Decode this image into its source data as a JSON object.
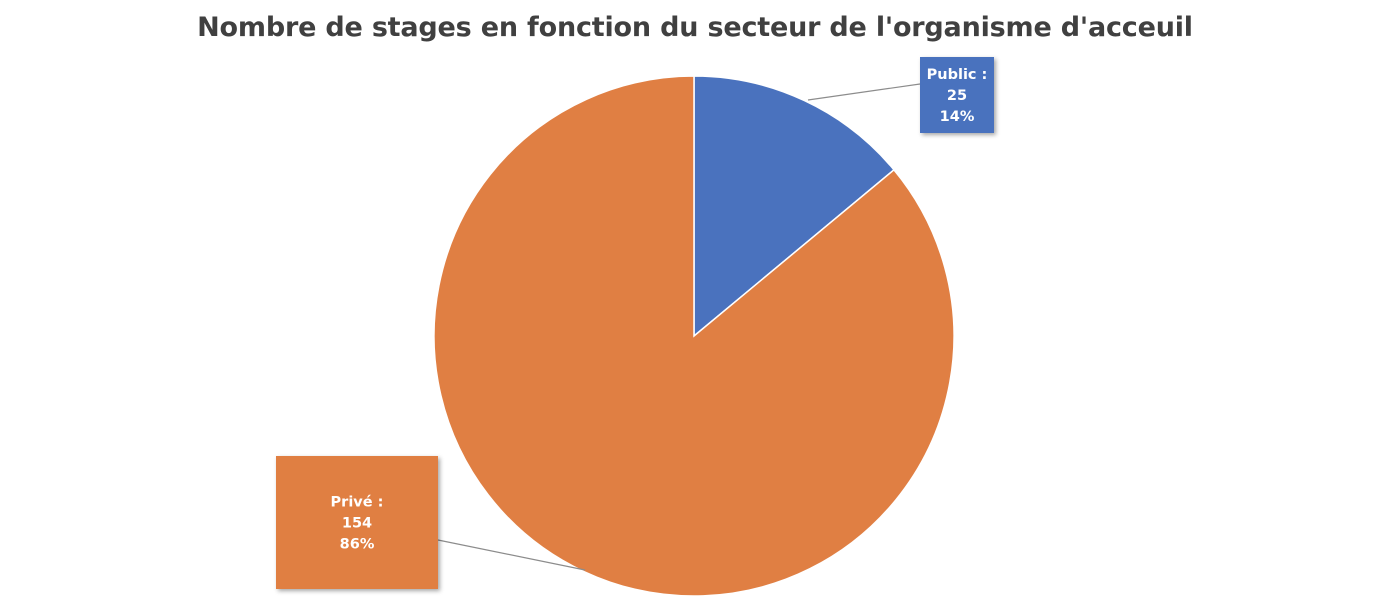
{
  "chart_data": {
    "type": "pie",
    "title": "Nombre de stages en fonction du secteur de l'organisme d'acceuil",
    "slices": [
      {
        "label": "Public",
        "value": 25,
        "percent": "14%",
        "color": "#4A72BE"
      },
      {
        "label": "Privé",
        "value": 154,
        "percent": "86%",
        "color": "#E07F43"
      }
    ],
    "data_labels": [
      {
        "category": "Public :",
        "value": "25",
        "percent": "14%"
      },
      {
        "category": "Privé :",
        "value": "154",
        "percent": "86%"
      }
    ],
    "legend": "none"
  }
}
